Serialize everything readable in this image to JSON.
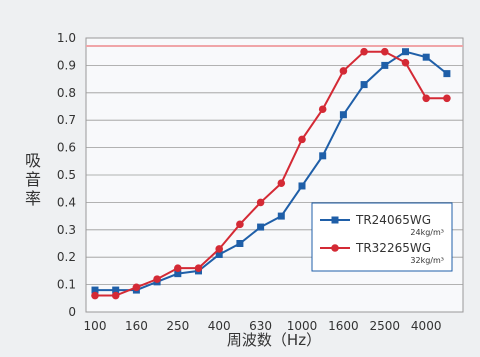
{
  "chart_data": {
    "type": "line",
    "ylabel": "吸音率",
    "xlabel": "周波数（Hz）",
    "x_tick_labels": [
      "100",
      "160",
      "250",
      "400",
      "630",
      "1000",
      "1600",
      "2500",
      "4000"
    ],
    "x_points": [
      "100",
      "125",
      "160",
      "200",
      "250",
      "315",
      "400",
      "500",
      "630",
      "800",
      "1000",
      "1250",
      "1600",
      "2000",
      "2500",
      "3150",
      "4000",
      "5000"
    ],
    "y_tick_labels": [
      "0",
      "0.1",
      "0.2",
      "0.3",
      "0.4",
      "0.5",
      "0.6",
      "0.7",
      "0.8",
      "0.9",
      "1.0"
    ],
    "ylim": [
      0,
      1.0
    ],
    "grid": true,
    "legend_position": "bottom-right",
    "series": [
      {
        "name": "TR24065WG",
        "sub": "24kg/m³",
        "color": "#1f5fa8",
        "marker": "square",
        "values": [
          0.08,
          0.08,
          0.08,
          0.11,
          0.14,
          0.15,
          0.21,
          0.25,
          0.31,
          0.35,
          0.46,
          0.57,
          0.72,
          0.83,
          0.9,
          0.95,
          0.93,
          0.87
        ]
      },
      {
        "name": "TR32265WG",
        "sub": "32kg/m³",
        "color": "#d42a35",
        "marker": "circle",
        "values": [
          0.06,
          0.06,
          0.09,
          0.12,
          0.16,
          0.16,
          0.23,
          0.32,
          0.4,
          0.47,
          0.63,
          0.74,
          0.88,
          0.95,
          0.95,
          0.91,
          0.78,
          0.78
        ]
      }
    ]
  }
}
